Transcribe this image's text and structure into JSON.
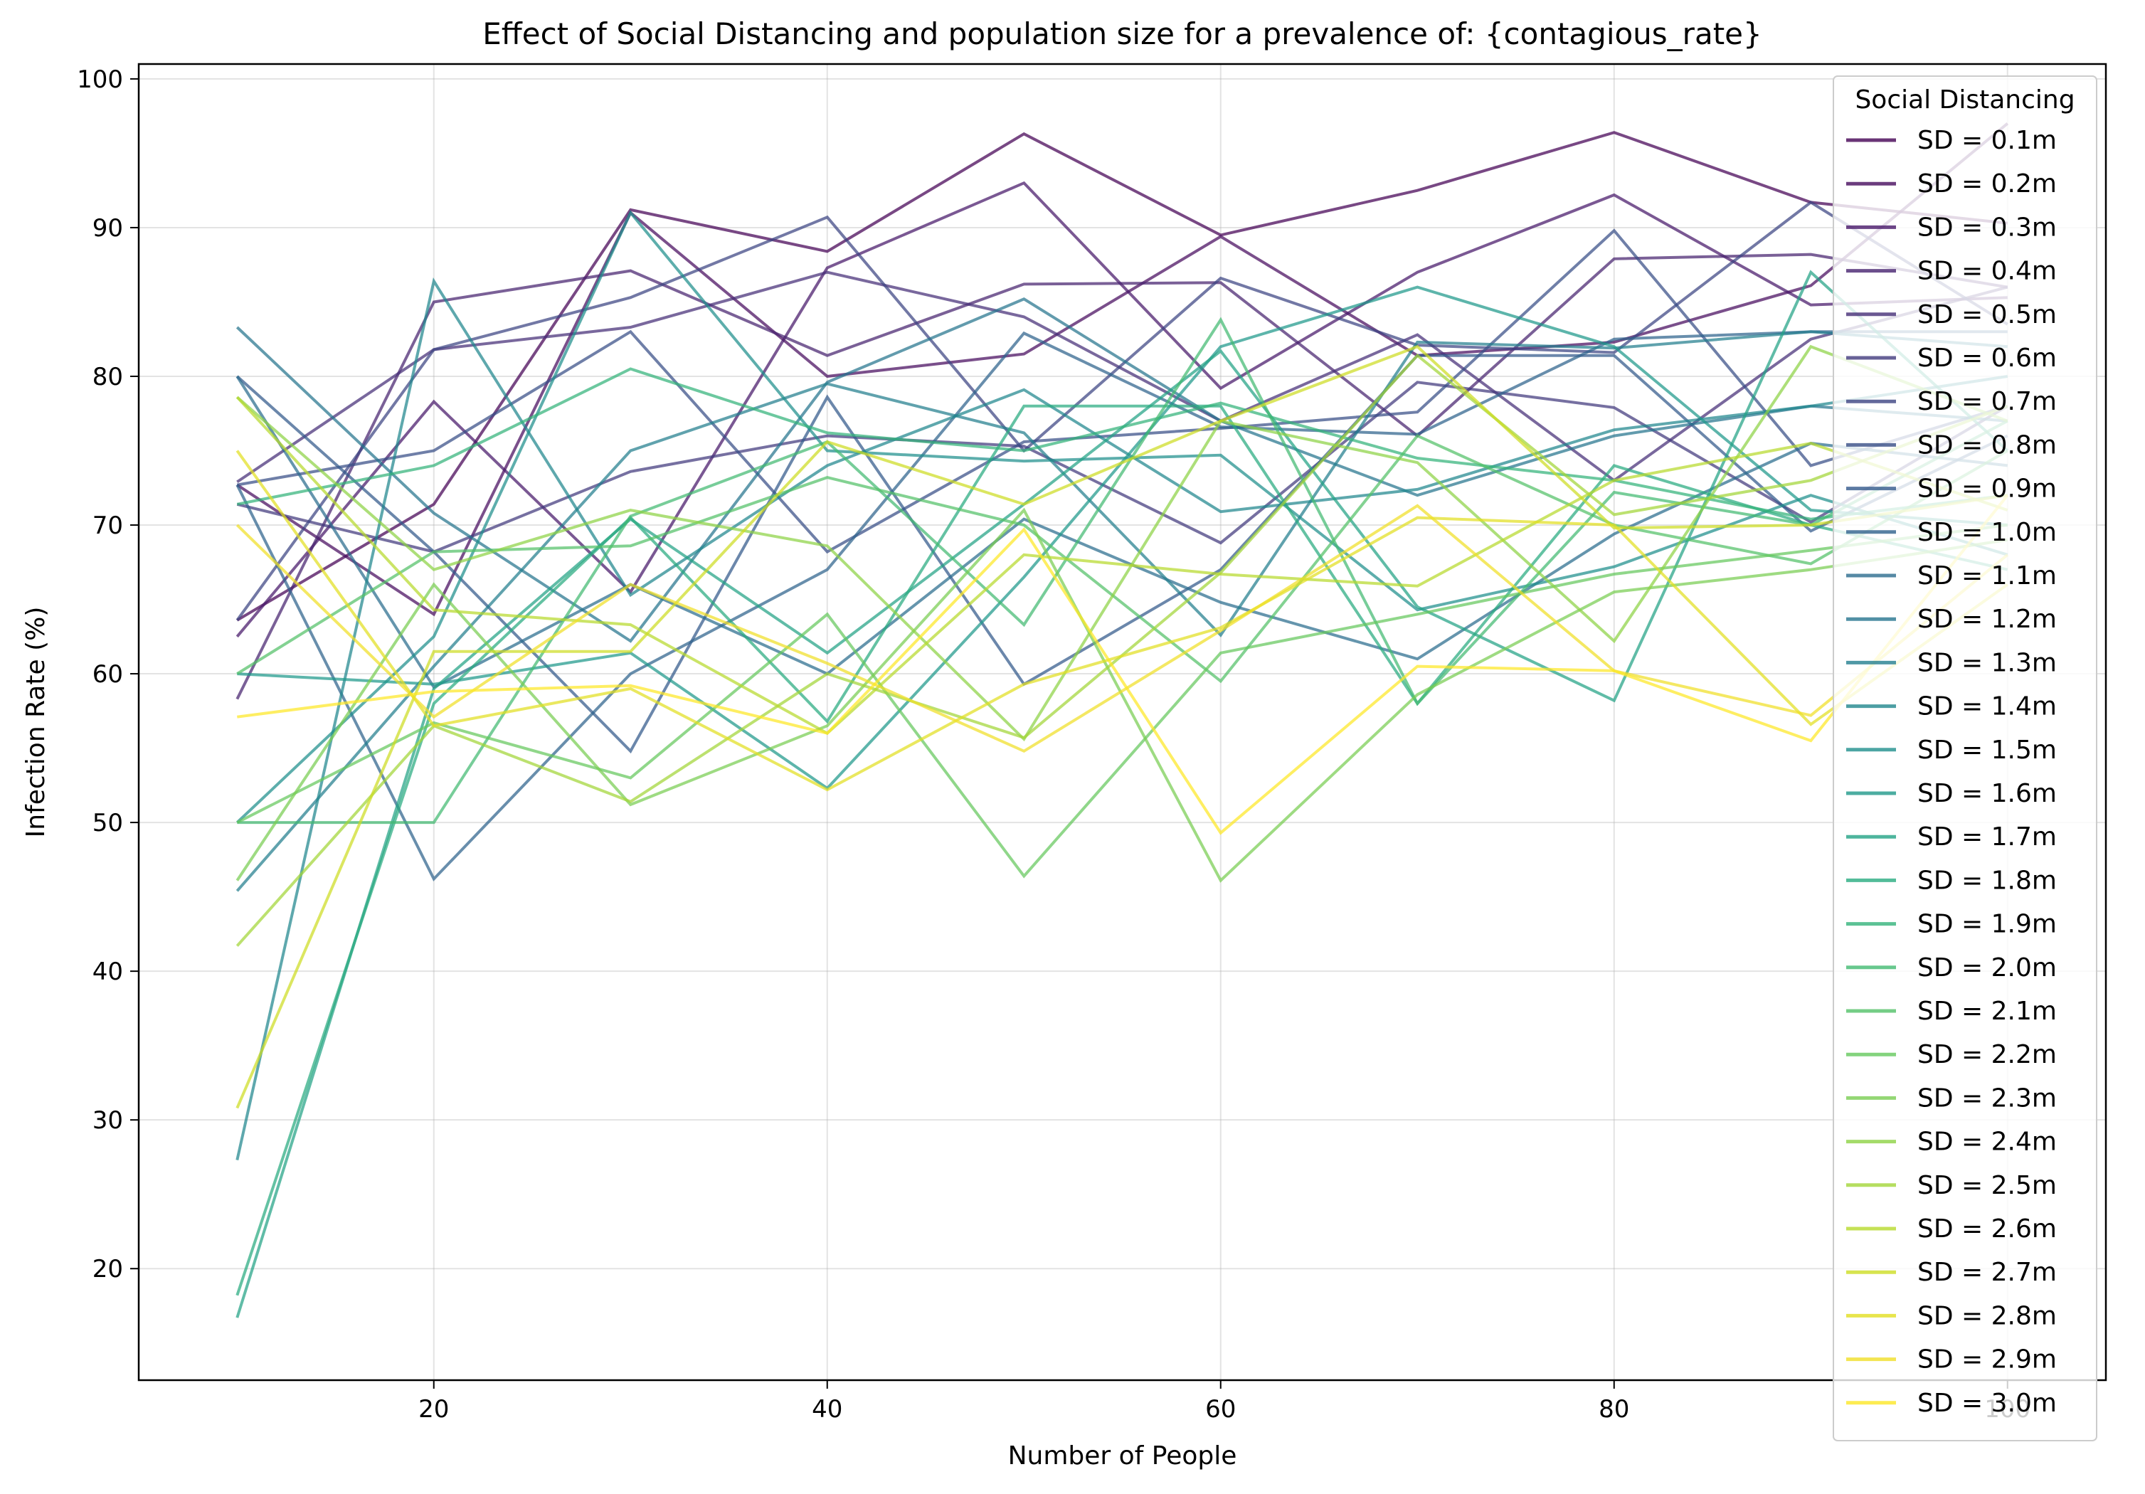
{
  "chart_data": {
    "type": "line",
    "title": "Effect of Social Distancing and population size for a prevalence of: {contagious_rate}",
    "xlabel": "Number of People",
    "ylabel": "Infection Rate (%)",
    "xlim": [
      5,
      105
    ],
    "ylim": [
      12.5,
      101
    ],
    "xticks": [
      20,
      40,
      60,
      80,
      100
    ],
    "yticks": [
      20,
      30,
      40,
      50,
      60,
      70,
      80,
      90,
      100
    ],
    "grid": true,
    "legend": {
      "title": "Social Distancing",
      "placement": "top-right"
    },
    "x": [
      10,
      20,
      30,
      40,
      50,
      60,
      70,
      80,
      90,
      100
    ],
    "series": [
      {
        "name": "SD = 0.1m",
        "color": "#440154",
        "values": [
          63.6,
          71.4,
          91.2,
          88.4,
          96.3,
          89.5,
          92.5,
          96.4,
          91.7,
          90.3
        ]
      },
      {
        "name": "SD = 0.2m",
        "color": "#460b5e",
        "values": [
          72.7,
          64.0,
          91.0,
          80.0,
          81.5,
          89.4,
          81.4,
          82.3,
          86.1,
          97.0
        ]
      },
      {
        "name": "SD = 0.3m",
        "color": "#471769",
        "values": [
          62.5,
          78.3,
          65.5,
          87.3,
          93.0,
          79.2,
          87.0,
          92.2,
          84.8,
          85.3
        ]
      },
      {
        "name": "SD = 0.4m",
        "color": "#46226f",
        "values": [
          58.3,
          85.0,
          87.1,
          81.4,
          86.2,
          86.3,
          76.0,
          87.9,
          88.2,
          86.0
        ]
      },
      {
        "name": "SD = 0.5m",
        "color": "#452e77",
        "values": [
          72.9,
          81.8,
          83.3,
          87.0,
          84.0,
          77.0,
          82.8,
          73.0,
          82.5,
          86.0
        ]
      },
      {
        "name": "SD = 0.6m",
        "color": "#41397d",
        "values": [
          71.4,
          68.2,
          73.6,
          76.0,
          75.3,
          68.8,
          79.6,
          77.9,
          70.2,
          78.0
        ]
      },
      {
        "name": "SD = 0.7m",
        "color": "#3c4482",
        "values": [
          63.6,
          81.8,
          85.3,
          90.7,
          75.0,
          86.6,
          82.1,
          81.6,
          91.7,
          83.5
        ]
      },
      {
        "name": "SD = 0.8m",
        "color": "#374e86",
        "values": [
          72.7,
          75.0,
          83.0,
          68.2,
          75.6,
          76.5,
          77.6,
          89.8,
          74.0,
          78.0
        ]
      },
      {
        "name": "SD = 0.9m",
        "color": "#32598b",
        "values": [
          80.0,
          68.2,
          54.8,
          78.6,
          59.3,
          67.0,
          81.4,
          81.4,
          69.6,
          76.0
        ]
      },
      {
        "name": "SD = 1.0m",
        "color": "#2e628c",
        "values": [
          72.7,
          46.2,
          60.0,
          67.0,
          82.9,
          76.6,
          76.1,
          82.5,
          83.0,
          83.0
        ]
      },
      {
        "name": "SD = 1.1m",
        "color": "#2a6c8d",
        "values": [
          80.0,
          59.1,
          66.0,
          60.0,
          70.4,
          64.8,
          61.0,
          69.4,
          75.5,
          74.0
        ]
      },
      {
        "name": "SD = 1.2m",
        "color": "#26748e",
        "values": [
          83.3,
          70.8,
          62.2,
          79.6,
          85.2,
          77.0,
          72.0,
          76.0,
          78.0,
          77.0
        ]
      },
      {
        "name": "SD = 1.3m",
        "color": "#237e8e",
        "values": [
          45.4,
          60.5,
          75.0,
          79.5,
          76.2,
          62.6,
          82.3,
          81.9,
          83.0,
          82.0
        ]
      },
      {
        "name": "SD = 1.4m",
        "color": "#20878d",
        "values": [
          27.3,
          86.4,
          65.3,
          74.0,
          79.1,
          70.9,
          72.4,
          76.4,
          78.0,
          80.0
        ]
      },
      {
        "name": "SD = 1.5m",
        "color": "#1f8f8c",
        "values": [
          50.0,
          62.5,
          91.0,
          75.0,
          74.3,
          74.7,
          64.3,
          67.2,
          72.0,
          68.0
        ]
      },
      {
        "name": "SD = 1.6m",
        "color": "#1f998a",
        "values": [
          60.0,
          59.3,
          61.4,
          52.3,
          66.5,
          82.0,
          86.0,
          82.0,
          71.0,
          70.0
        ]
      },
      {
        "name": "SD = 1.7m",
        "color": "#22a285",
        "values": [
          16.7,
          59.0,
          70.4,
          61.4,
          71.4,
          81.7,
          64.5,
          58.2,
          87.0,
          75.0
        ]
      },
      {
        "name": "SD = 1.8m",
        "color": "#28ab80",
        "values": [
          18.2,
          58.0,
          70.5,
          56.8,
          78.0,
          78.0,
          58.0,
          74.0,
          70.0,
          67.0
        ]
      },
      {
        "name": "SD = 1.9m",
        "color": "#33b37a",
        "values": [
          71.4,
          74.0,
          80.5,
          76.2,
          75.0,
          78.2,
          74.5,
          73.0,
          70.4,
          72.0
        ]
      },
      {
        "name": "SD = 2.0m",
        "color": "#42ba72",
        "values": [
          50.0,
          50.0,
          70.6,
          75.6,
          63.3,
          83.8,
          58.0,
          72.2,
          70.0,
          77.0
        ]
      },
      {
        "name": "SD = 2.1m",
        "color": "#53c168",
        "values": [
          60.0,
          68.2,
          68.6,
          73.2,
          70.0,
          59.5,
          76.0,
          70.0,
          67.4,
          75.0
        ]
      },
      {
        "name": "SD = 2.2m",
        "color": "#65c85d",
        "values": [
          50.0,
          56.7,
          53.0,
          64.0,
          46.4,
          61.4,
          64.0,
          66.7,
          68.3,
          70.0
        ]
      },
      {
        "name": "SD = 2.3m",
        "color": "#79cd52",
        "values": [
          46.1,
          66.0,
          51.2,
          56.5,
          71.0,
          46.1,
          58.6,
          65.5,
          67.0,
          69.0
        ]
      },
      {
        "name": "SD = 2.4m",
        "color": "#8dd245",
        "values": [
          78.6,
          67.0,
          71.0,
          68.6,
          55.6,
          77.0,
          74.2,
          62.2,
          82.0,
          77.0
        ]
      },
      {
        "name": "SD = 2.5m",
        "color": "#a2d638",
        "values": [
          41.7,
          56.5,
          51.4,
          60.0,
          55.7,
          66.8,
          81.4,
          70.7,
          73.0,
          78.0
        ]
      },
      {
        "name": "SD = 2.6m",
        "color": "#b7da2c",
        "values": [
          78.6,
          64.3,
          63.3,
          56.0,
          68.0,
          66.7,
          65.9,
          73.0,
          75.5,
          71.0
        ]
      },
      {
        "name": "SD = 2.7m",
        "color": "#cddd23",
        "values": [
          30.8,
          61.5,
          61.5,
          75.6,
          71.4,
          77.0,
          82.0,
          69.8,
          70.0,
          72.0
        ]
      },
      {
        "name": "SD = 2.8m",
        "color": "#e2df21",
        "values": [
          75.0,
          56.5,
          59.0,
          52.2,
          59.3,
          63.1,
          70.5,
          70.0,
          56.6,
          66.0
        ]
      },
      {
        "name": "SD = 2.9m",
        "color": "#f0df27",
        "values": [
          70.0,
          57.1,
          66.0,
          60.7,
          54.8,
          62.9,
          71.3,
          60.2,
          57.2,
          68.0
        ]
      },
      {
        "name": "SD = 3.0m",
        "color": "#fde725",
        "values": [
          57.1,
          58.8,
          59.2,
          56.0,
          69.7,
          49.3,
          60.5,
          60.2,
          55.5,
          72.0
        ]
      }
    ]
  }
}
